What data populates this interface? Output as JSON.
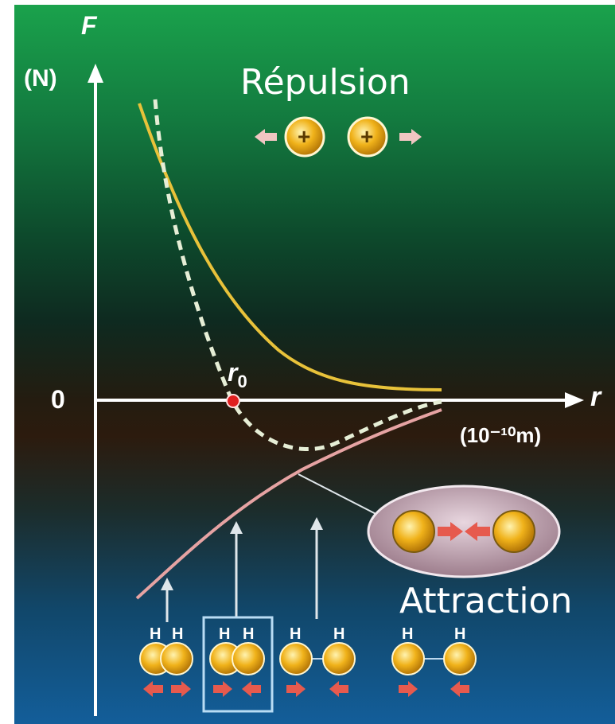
{
  "diagram": {
    "axis_f_label": "F",
    "axis_f_unit": "(N)",
    "origin_label": "0",
    "axis_r_label": "r",
    "axis_r_unit": "(10⁻¹⁰m)",
    "r0_label": "r",
    "r0_subscript": "0",
    "repulsion_label": "Répulsion",
    "attraction_label": "Attraction",
    "plus_sign": "+",
    "atom_letter": "H",
    "colors": {
      "repulsion_curve": "#e8c23a",
      "attraction_curve": "#e6a3a3",
      "net_curve": "#e6eed6",
      "equilibrium_point": "#e02020",
      "atom": "#f0b21a",
      "arrow": "#e65a4e"
    },
    "icons": [
      "force-arrow-icon",
      "proton-icon",
      "hydrogen-atom-icon"
    ]
  }
}
